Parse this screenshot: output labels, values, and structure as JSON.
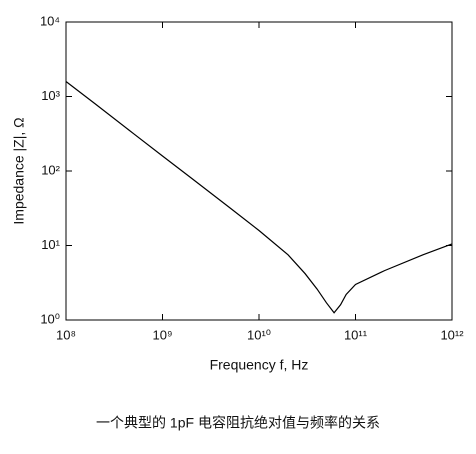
{
  "chart_data": {
    "type": "line",
    "x_label": "Frequency f, Hz",
    "y_label": "Impedance |Z|, Ω",
    "caption": "一个典型的 1pF 电容阻抗绝对值与频率的关系",
    "x": [
      100000000,
      200000000,
      500000000,
      1000000000,
      2000000000,
      5000000000,
      10000000000,
      20000000000,
      30000000000,
      40000000000,
      50000000000,
      60000000000,
      70000000000,
      80000000000,
      100000000000,
      200000000000,
      500000000000,
      1000000000000
    ],
    "series": [
      {
        "color": "#000000",
        "values": [
          1590,
          800,
          318,
          159,
          80,
          32,
          15.9,
          7.5,
          4.2,
          2.6,
          1.7,
          1.25,
          1.6,
          2.2,
          3.0,
          4.6,
          7.5,
          10.5
        ]
      }
    ],
    "xscale": "log",
    "yscale": "log",
    "xlim": [
      100000000,
      1000000000000
    ],
    "ylim": [
      1,
      10000
    ],
    "xticks": [
      {
        "value": 100000000,
        "label": "10⁸"
      },
      {
        "value": 1000000000,
        "label": "10⁹"
      },
      {
        "value": 10000000000,
        "label": "10¹⁰"
      },
      {
        "value": 100000000000,
        "label": "10¹¹"
      },
      {
        "value": 1000000000000,
        "label": "10¹²"
      }
    ],
    "yticks": [
      {
        "value": 1,
        "label": "10⁰"
      },
      {
        "value": 10,
        "label": "10¹"
      },
      {
        "value": 100,
        "label": "10²"
      },
      {
        "value": 1000,
        "label": "10³"
      },
      {
        "value": 10000,
        "label": "10⁴"
      }
    ],
    "grid": false
  }
}
